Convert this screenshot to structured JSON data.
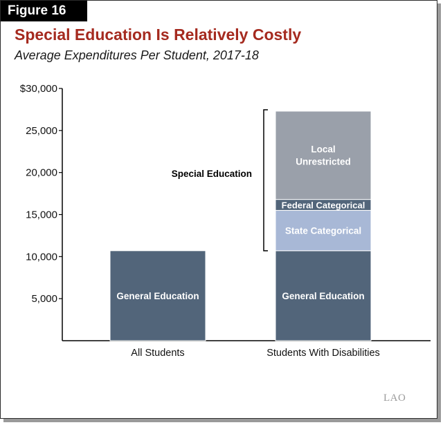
{
  "figure_label": "Figure 16",
  "logo_text": "LAO",
  "colors": {
    "general_education": "#52657a",
    "state_categorical": "#a8b8d6",
    "federal_categorical": "#52657a",
    "local_unrestricted": "#9aa0aa",
    "title": "#a52a1f"
  },
  "chart_data": {
    "type": "bar",
    "title": "Special Education Is Relatively Costly",
    "subtitle": "Average Expenditures Per Student, 2017-18",
    "categories": [
      "All Students",
      "Students With Disabilities"
    ],
    "ylim": [
      0,
      30000
    ],
    "yticks": [
      "$30,000",
      "25,000",
      "20,000",
      "15,000",
      "10,000",
      "5,000"
    ],
    "ytick_values": [
      30000,
      25000,
      20000,
      15000,
      10000,
      5000
    ],
    "stacked": true,
    "series": [
      {
        "name": "General Education",
        "values": [
          10700,
          10700
        ],
        "color": "#52657a"
      },
      {
        "name": "State Categorical",
        "values": [
          0,
          4800
        ],
        "color": "#a8b8d6"
      },
      {
        "name": "Federal Categorical",
        "values": [
          0,
          1300
        ],
        "color": "#52657a"
      },
      {
        "name": "Local Unrestricted",
        "values": [
          0,
          10500
        ],
        "color": "#9aa0aa"
      }
    ],
    "bracket_label": "Special Education",
    "bracket_range": [
      10700,
      27300
    ],
    "grid": false
  }
}
